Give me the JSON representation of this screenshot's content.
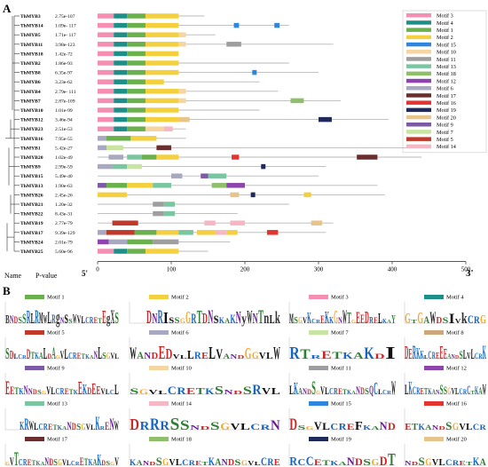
{
  "panel_a_label": "A",
  "panel_b_label": "B",
  "footer": {
    "name": "Name",
    "pvalue": "P-value",
    "start_marker": "5'",
    "end_marker": "3'"
  },
  "x_axis": {
    "ticks": [
      0,
      100,
      200,
      300,
      400,
      500
    ]
  },
  "motif_colors": {
    "1": "#6ab04c",
    "2": "#f4d03f",
    "3": "#f48fb1",
    "4": "#1e8e88",
    "5": "#c0392b",
    "6": "#a8a8c0",
    "7": "#c7e5a0",
    "8": "#cda77a",
    "9": "#7b5aa6",
    "10": "#f5d5a0",
    "11": "#9e9e9e",
    "12": "#8e44ad",
    "13": "#79c6a0",
    "14": "#f7b6c4",
    "15": "#2e86de",
    "16": "#e3342f",
    "17": "#6b2e2e",
    "18": "#8fbf6a",
    "19": "#1e2a5a",
    "20": "#e6c48a"
  },
  "legend": [
    "Motif 3",
    "Motif 4",
    "Motif 1",
    "Motif 2",
    "Motif 15",
    "Motif 10",
    "Motif 11",
    "Motif 13",
    "Motif 18",
    "Motif 12",
    "Motif 6",
    "Motif 17",
    "Motif 16",
    "Motif 19",
    "Motif 20",
    "Motif 9",
    "Motif 7",
    "Motif 5",
    "Motif 14"
  ],
  "legend_ids": [
    3,
    4,
    1,
    2,
    15,
    10,
    11,
    13,
    18,
    12,
    6,
    17,
    16,
    19,
    20,
    9,
    7,
    5,
    14
  ],
  "genes": [
    {
      "name": "ThMYB3",
      "p": "2.75e-107",
      "len": 145,
      "motifs": [
        [
          3,
          0,
          22
        ],
        [
          4,
          22,
          40
        ],
        [
          1,
          40,
          65
        ],
        [
          2,
          65,
          110
        ]
      ]
    },
    {
      "name": "ThMYB14",
      "p": "1.09e- 117",
      "len": 260,
      "motifs": [
        [
          3,
          0,
          22
        ],
        [
          4,
          22,
          40
        ],
        [
          1,
          40,
          65
        ],
        [
          2,
          65,
          110
        ],
        [
          15,
          185,
          192
        ],
        [
          15,
          240,
          247
        ]
      ]
    },
    {
      "name": "ThMYB5",
      "p": "1.71e- 117",
      "len": 160,
      "motifs": [
        [
          3,
          0,
          22
        ],
        [
          4,
          22,
          40
        ],
        [
          1,
          40,
          65
        ],
        [
          2,
          65,
          110
        ],
        [
          10,
          110,
          120
        ]
      ]
    },
    {
      "name": "ThMYB11",
      "p": "3.98e-123",
      "len": 320,
      "motifs": [
        [
          3,
          0,
          22
        ],
        [
          4,
          22,
          40
        ],
        [
          1,
          40,
          65
        ],
        [
          2,
          65,
          110
        ],
        [
          10,
          110,
          120
        ],
        [
          11,
          175,
          195
        ]
      ]
    },
    {
      "name": "ThMYB18",
      "p": "1.42e-72",
      "len": 110,
      "motifs": [
        [
          3,
          0,
          22
        ],
        [
          4,
          22,
          40
        ],
        [
          1,
          40,
          65
        ],
        [
          2,
          65,
          110
        ]
      ]
    },
    {
      "name": "ThMYB2",
      "p": "1.86e-93",
      "len": 260,
      "motifs": [
        [
          3,
          0,
          22
        ],
        [
          4,
          22,
          40
        ],
        [
          1,
          40,
          65
        ],
        [
          2,
          65,
          110
        ]
      ]
    },
    {
      "name": "ThMYB8",
      "p": "6.35e-97",
      "len": 300,
      "motifs": [
        [
          3,
          0,
          22
        ],
        [
          4,
          22,
          40
        ],
        [
          1,
          40,
          65
        ],
        [
          2,
          65,
          110
        ],
        [
          15,
          210,
          216
        ]
      ]
    },
    {
      "name": "ThMYB6",
      "p": "3.23e-62",
      "len": 220,
      "motifs": [
        [
          3,
          0,
          22
        ],
        [
          4,
          22,
          40
        ],
        [
          1,
          40,
          65
        ],
        [
          2,
          65,
          90
        ]
      ]
    },
    {
      "name": "ThMYB4",
      "p": "2.79e- 111",
      "len": 245,
      "motifs": [
        [
          3,
          0,
          22
        ],
        [
          4,
          22,
          40
        ],
        [
          1,
          40,
          65
        ],
        [
          2,
          65,
          110
        ],
        [
          10,
          110,
          120
        ]
      ]
    },
    {
      "name": "ThMYB7",
      "p": "2.87e-109",
      "len": 330,
      "motifs": [
        [
          3,
          0,
          22
        ],
        [
          4,
          22,
          40
        ],
        [
          1,
          40,
          65
        ],
        [
          2,
          65,
          110
        ],
        [
          10,
          110,
          120
        ],
        [
          18,
          262,
          280
        ]
      ]
    },
    {
      "name": "ThMYB10",
      "p": "1.01e-99",
      "len": 220,
      "motifs": [
        [
          3,
          0,
          22
        ],
        [
          4,
          22,
          40
        ],
        [
          1,
          40,
          65
        ],
        [
          2,
          65,
          110
        ]
      ]
    },
    {
      "name": "ThMYB12",
      "p": "3.46e-94",
      "len": 395,
      "motifs": [
        [
          3,
          0,
          22
        ],
        [
          4,
          22,
          40
        ],
        [
          1,
          40,
          65
        ],
        [
          2,
          65,
          110
        ],
        [
          20,
          110,
          125
        ],
        [
          19,
          300,
          318
        ]
      ]
    },
    {
      "name": "ThMYB23",
      "p": "2.51e-53",
      "len": 120,
      "motifs": [
        [
          3,
          0,
          22
        ],
        [
          4,
          22,
          40
        ],
        [
          1,
          40,
          65
        ],
        [
          10,
          65,
          90
        ],
        [
          14,
          90,
          102
        ]
      ]
    },
    {
      "name": "ThMYB16",
      "p": "7.95e-55",
      "len": 120,
      "motifs": [
        [
          6,
          0,
          12
        ],
        [
          1,
          12,
          45
        ],
        [
          2,
          45,
          80
        ]
      ]
    },
    {
      "name": "ThMYB1",
      "p": "5.42e-27",
      "len": 430,
      "motifs": [
        [
          6,
          0,
          12
        ],
        [
          7,
          12,
          35
        ],
        [
          17,
          80,
          100
        ]
      ]
    },
    {
      "name": "ThMYB20",
      "p": "1.02e-49",
      "len": 440,
      "motifs": [
        [
          6,
          15,
          35
        ],
        [
          13,
          40,
          60
        ],
        [
          1,
          60,
          80
        ],
        [
          2,
          80,
          110
        ],
        [
          16,
          182,
          192
        ],
        [
          17,
          352,
          380
        ]
      ]
    },
    {
      "name": "ThMYB9",
      "p": "2.99e-59",
      "len": 310,
      "motifs": [
        [
          6,
          0,
          20
        ],
        [
          13,
          20,
          40
        ],
        [
          7,
          40,
          60
        ],
        [
          19,
          222,
          228
        ]
      ]
    },
    {
      "name": "ThMYB15",
      "p": "5.49e-40",
      "len": 300,
      "motifs": [
        [
          6,
          100,
          115
        ],
        [
          9,
          140,
          150
        ],
        [
          13,
          150,
          175
        ]
      ]
    },
    {
      "name": "ThMYB13",
      "p": "1.90e-63",
      "len": 380,
      "motifs": [
        [
          9,
          0,
          12
        ],
        [
          1,
          12,
          40
        ],
        [
          2,
          40,
          75
        ],
        [
          13,
          75,
          100
        ],
        [
          18,
          155,
          175
        ],
        [
          12,
          175,
          200
        ]
      ]
    },
    {
      "name": "ThMYB26",
      "p": "2.45e-26",
      "len": 390,
      "motifs": [
        [
          2,
          0,
          40
        ],
        [
          20,
          180,
          192
        ],
        [
          19,
          208,
          214
        ],
        [
          2,
          280,
          290
        ]
      ]
    },
    {
      "name": "ThMYB21",
      "p": "1.20e-32",
      "len": 260,
      "motifs": [
        [
          11,
          75,
          90
        ],
        [
          13,
          90,
          105
        ]
      ]
    },
    {
      "name": "ThMYB22",
      "p": "8.43e-31",
      "len": 190,
      "motifs": [
        [
          11,
          75,
          90
        ],
        [
          13,
          90,
          105
        ]
      ]
    },
    {
      "name": "ThMYB19",
      "p": "2.77e-79",
      "len": 320,
      "motifs": [
        [
          5,
          20,
          55
        ],
        [
          14,
          145,
          160
        ],
        [
          14,
          180,
          200
        ],
        [
          20,
          290,
          305
        ]
      ]
    },
    {
      "name": "ThMYB17",
      "p": "9.39e-129",
      "len": 310,
      "motifs": [
        [
          6,
          0,
          12
        ],
        [
          5,
          12,
          50
        ],
        [
          1,
          50,
          80
        ],
        [
          2,
          80,
          110
        ],
        [
          13,
          110,
          130
        ],
        [
          2,
          135,
          160
        ],
        [
          14,
          160,
          175
        ],
        [
          2,
          175,
          190
        ],
        [
          16,
          230,
          245
        ]
      ]
    },
    {
      "name": "ThMYB24",
      "p": "2.01e-79",
      "len": 180,
      "motifs": [
        [
          12,
          0,
          15
        ],
        [
          6,
          15,
          40
        ],
        [
          1,
          40,
          75
        ],
        [
          11,
          75,
          110
        ]
      ]
    },
    {
      "name": "ThMYB25",
      "p": "5.60e-96",
      "len": 150,
      "motifs": [
        [
          3,
          0,
          22
        ],
        [
          4,
          22,
          40
        ],
        [
          1,
          40,
          65
        ],
        [
          2,
          65,
          110
        ]
      ]
    }
  ],
  "motif_boxes": [
    {
      "id": 1,
      "label": "Motif 1",
      "color": "#6ab04c",
      "seq": "BxxxSRLRMWLRgxsxwxxxxxxEgXS"
    },
    {
      "id": 2,
      "label": "Motif 2",
      "color": "#f4d03f",
      "seq": "...DNRIsxxGRTDNsxxKNyWNTnLk"
    },
    {
      "id": 3,
      "label": "Motif 3",
      "color": "#f48fb1",
      "seq": "MxxxKxxxKxGxWTxEEDxxLxxY"
    },
    {
      "id": 4,
      "label": "Motif 4",
      "color": "#1e8e88",
      "seq": "GxGxWxxIxkxxG"
    },
    {
      "id": 5,
      "label": "Motif 5",
      "color": "#c0392b",
      "seq": "SDxxxDxxxLxAxxLxxxxxxxLxxxx"
    },
    {
      "id": 6,
      "label": "Motif 6",
      "color": "#a8a8c0",
      "seq": "WxxxEDxxLxxLVxxxGxxxW"
    },
    {
      "id": 7,
      "label": "Motif 7",
      "color": "#c7e5a0",
      "seq": "RTxxxxxKxI"
    },
    {
      "id": 8,
      "label": "Motif 8",
      "color": "#cda77a",
      "seq": "DERKKxxxxEExxxxLxLxxK"
    },
    {
      "id": 9,
      "label": "Motif 9",
      "color": "#7b5aa6",
      "seq": "ExxxNxxxxxxxxxxxEKxEExxxL"
    },
    {
      "id": 10,
      "label": "Motif 10",
      "color": "#f5d5a0",
      "seq": "xxxxxxxxxSxxxRxx"
    },
    {
      "id": 11,
      "label": "Motif 11",
      "color": "#9e9e9e",
      "seq": "LKxxxSxxxxxxxxxxxxQCxxxW"
    },
    {
      "id": 12,
      "label": "Motif 12",
      "color": "#8e44ad",
      "seq": "LKxxxxxxxSxxxxxxCxxxW"
    },
    {
      "id": 13,
      "label": "Motif 13",
      "color": "#79c6a0",
      "seq": "...KRWxxxxxxxxxxxxxKxxNW"
    },
    {
      "id": 14,
      "label": "Motif 14",
      "color": "#f7b6c4",
      "seq": "DRRRSSxxxxxxxxN"
    },
    {
      "id": 15,
      "label": "Motif 15",
      "color": "#2e86de",
      "seq": "DxxxxxxxFxxxx"
    },
    {
      "id": 16,
      "label": "Motif 16",
      "color": "#e3342f",
      "seq": "xxxxxxxxxxxx"
    },
    {
      "id": 17,
      "label": "Motif 17",
      "color": "#6b2e2e",
      "seq": "xxTxxxxxxxxxxxxxxxxxxKxxxx"
    },
    {
      "id": 18,
      "label": "Motif 18",
      "color": "#8fbf6a",
      "seq": "xxxxxxxxxxxxxxxxxxxxxxx"
    },
    {
      "id": 19,
      "label": "Motif 19",
      "color": "#1e2a5a",
      "seq": "RxCxxxxxxxxDT"
    },
    {
      "id": 20,
      "label": "Motif 20",
      "color": "#e6c48a",
      "seq": "xxxxxxxxxxxx"
    }
  ]
}
